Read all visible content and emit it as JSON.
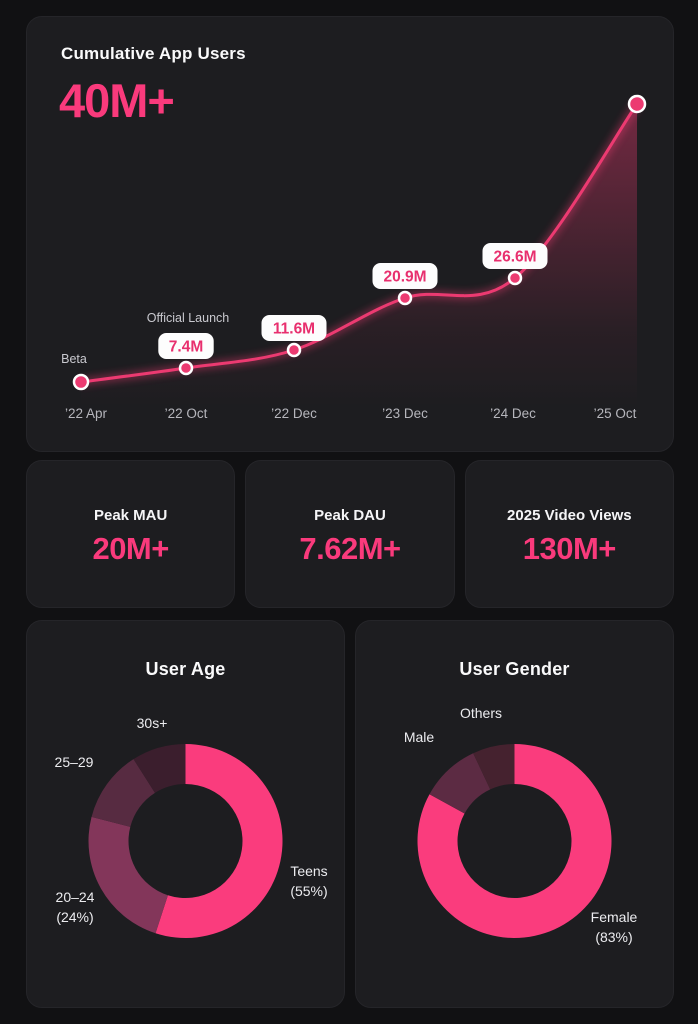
{
  "theme": {
    "page_bg": "#111113",
    "card_bg": "#1d1d20",
    "accent_pink": "#fa3a7c",
    "line_pink": "#ec3a71",
    "badge_bg": "#fdfdfd",
    "badge_text": "#e82f6e",
    "axis_label_color": "#b6b6bc",
    "annotation_color": "#c9c9cf"
  },
  "chart_data": [
    {
      "id": "cumulative_users",
      "type": "line",
      "title": "Cumulative App Users",
      "headline": "40M+",
      "x": [
        "’22 Apr",
        "’22 Oct",
        "’22 Dec",
        "’23 Dec",
        "’24 Dec",
        "’25 Oct"
      ],
      "points": [
        {
          "x": "’22 Apr",
          "annotation": "Beta",
          "value_label": null,
          "value_m": null
        },
        {
          "x": "’22 Oct",
          "annotation": "Official Launch",
          "value_label": "7.4M",
          "value_m": 7.4
        },
        {
          "x": "’22 Dec",
          "annotation": null,
          "value_label": "11.6M",
          "value_m": 11.6
        },
        {
          "x": "’23 Dec",
          "annotation": null,
          "value_label": "20.9M",
          "value_m": 20.9
        },
        {
          "x": "’24 Dec",
          "annotation": null,
          "value_label": "26.6M",
          "value_m": 26.6
        },
        {
          "x": "’25 Oct",
          "annotation": null,
          "value_label": null,
          "value_m": 40
        }
      ],
      "ylim": [
        0,
        40
      ],
      "grid": false,
      "legend": false,
      "area_fill": true
    },
    {
      "id": "user_age",
      "type": "pie",
      "title": "User Age",
      "donut": true,
      "start_angle_deg": 0,
      "direction": "clockwise",
      "segments": [
        {
          "label": "Teens",
          "pct": 55,
          "pct_label": "(55%)",
          "color": "#fa3c7d"
        },
        {
          "label": "20–24",
          "pct": 24,
          "pct_label": "(24%)",
          "color": "#83365a"
        },
        {
          "label": "25–29",
          "pct": 12,
          "pct_label": "",
          "color": "#572b41"
        },
        {
          "label": "30s+",
          "pct": 9,
          "pct_label": "",
          "color": "#3b1e2d"
        }
      ]
    },
    {
      "id": "user_gender",
      "type": "pie",
      "title": "User Gender",
      "donut": true,
      "start_angle_deg": 0,
      "direction": "clockwise",
      "segments": [
        {
          "label": "Female",
          "pct": 83,
          "pct_label": "(83%)",
          "color": "#fa3c7d"
        },
        {
          "label": "Male",
          "pct": 10,
          "pct_label": "",
          "color": "#5c2b43"
        },
        {
          "label": "Others",
          "pct": 7,
          "pct_label": "",
          "color": "#45222f"
        }
      ]
    }
  ],
  "stats": [
    {
      "label": "Peak MAU",
      "value": "20M+"
    },
    {
      "label": "Peak DAU",
      "value": "7.62M+"
    },
    {
      "label": "2025 Video Views",
      "value": "130M+"
    }
  ]
}
